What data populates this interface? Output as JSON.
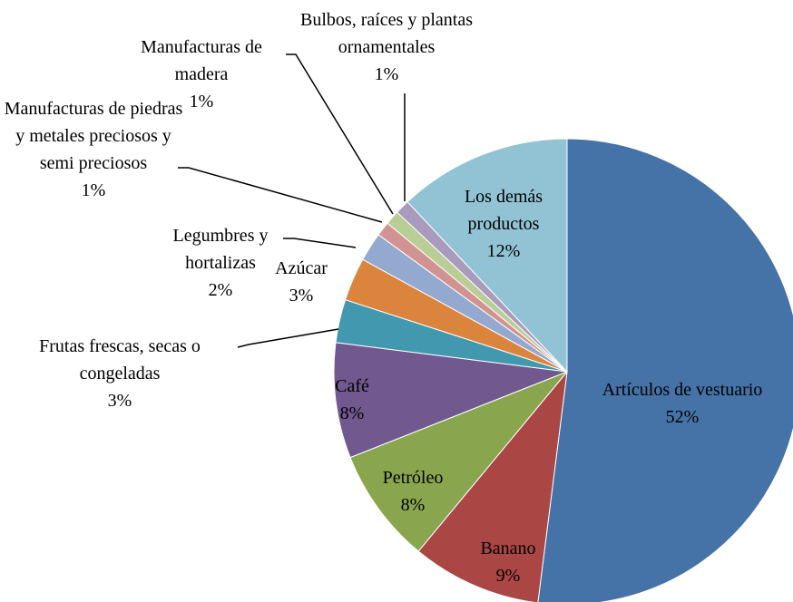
{
  "chart_data": {
    "type": "pie",
    "categories": [
      "Artículos de vestuario",
      "Banano",
      "Petróleo",
      "Café",
      "Frutas frescas, secas o congeladas",
      "Azúcar",
      "Legumbres y hortalizas",
      "Manufacturas de piedras y metales preciosos y semi preciosos",
      "Manufacturas de madera",
      "Bulbos, raíces y plantas ornamentales",
      "Los demás productos"
    ],
    "values": [
      52,
      9,
      8,
      8,
      3,
      3,
      2,
      1,
      1,
      1,
      12
    ],
    "value_labels": [
      "52%",
      "9%",
      "8%",
      "8%",
      "3%",
      "3%",
      "2%",
      "1%",
      "1%",
      "1%",
      "12%"
    ],
    "colors": [
      "#4572a7",
      "#aa4643",
      "#89a54e",
      "#71588f",
      "#4198af",
      "#db843d",
      "#93a9cf",
      "#d19392",
      "#b9cd96",
      "#a99bbd",
      "#92c3d4"
    ]
  }
}
